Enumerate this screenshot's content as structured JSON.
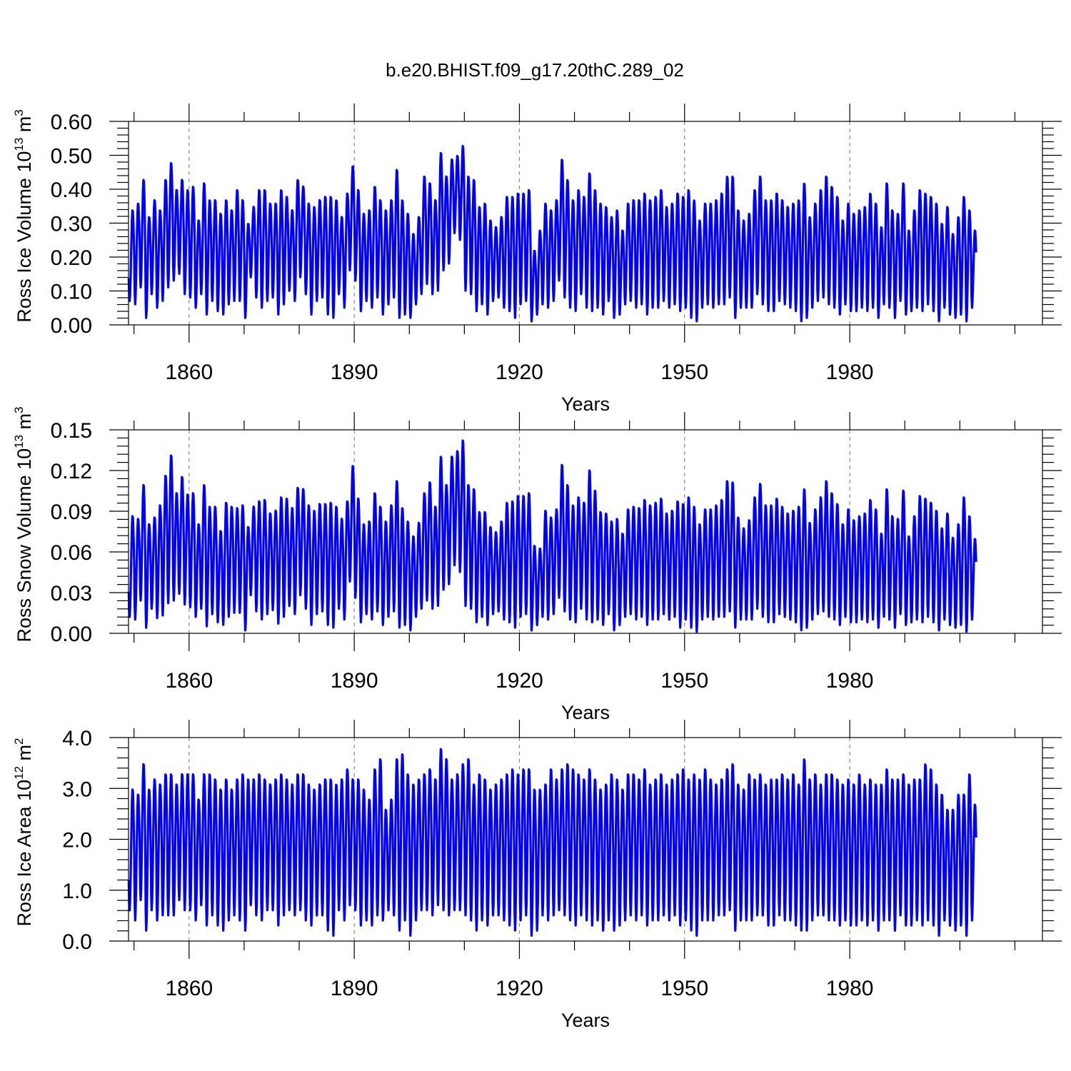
{
  "figure": {
    "title": "b.e20.BHIST.f09_g17.20thC.289_02"
  },
  "style": {
    "line_color": "#0000ff",
    "grid_color": "#888888"
  },
  "chart_data": [
    {
      "type": "line",
      "title": "",
      "xlabel": "Years",
      "ylabel_main": "Ross Ice Volume 10",
      "ylabel_sup": "13",
      "ylabel_unit": " m",
      "ylabel_unit_sup": "3",
      "xlim": [
        1849,
        2015
      ],
      "ylim": [
        0.0,
        0.6
      ],
      "x_ticks": [
        1860,
        1890,
        1920,
        1950,
        1980
      ],
      "x_tick_labels": [
        "1860",
        "1890",
        "1920",
        "1950",
        "1980"
      ],
      "y_ticks": [
        0.0,
        0.1,
        0.2,
        0.3,
        0.4,
        0.5,
        0.6
      ],
      "y_tick_labels": [
        "0.00",
        "0.10",
        "0.20",
        "0.30",
        "0.40",
        "0.50",
        "0.60"
      ],
      "grid": "vertical dashed at major x ticks",
      "series": [
        {
          "color": "#0000ff",
          "cycle": "annual",
          "annual_max": [
            0.34,
            0.36,
            0.43,
            0.32,
            0.37,
            0.34,
            0.43,
            0.48,
            0.4,
            0.43,
            0.4,
            0.41,
            0.31,
            0.42,
            0.37,
            0.37,
            0.33,
            0.37,
            0.34,
            0.4,
            0.37,
            0.3,
            0.35,
            0.4,
            0.4,
            0.36,
            0.36,
            0.4,
            0.38,
            0.34,
            0.43,
            0.41,
            0.36,
            0.35,
            0.37,
            0.38,
            0.38,
            0.37,
            0.32,
            0.39,
            0.47,
            0.4,
            0.33,
            0.34,
            0.41,
            0.37,
            0.34,
            0.37,
            0.46,
            0.37,
            0.33,
            0.27,
            0.32,
            0.44,
            0.42,
            0.37,
            0.51,
            0.44,
            0.49,
            0.5,
            0.53,
            0.44,
            0.43,
            0.35,
            0.36,
            0.31,
            0.29,
            0.32,
            0.38,
            0.38,
            0.39,
            0.39,
            0.4,
            0.22,
            0.28,
            0.36,
            0.34,
            0.37,
            0.49,
            0.43,
            0.37,
            0.4,
            0.38,
            0.45,
            0.4,
            0.36,
            0.35,
            0.32,
            0.34,
            0.28,
            0.36,
            0.37,
            0.37,
            0.39,
            0.37,
            0.38,
            0.4,
            0.35,
            0.36,
            0.39,
            0.38,
            0.4,
            0.37,
            0.31,
            0.36,
            0.36,
            0.37,
            0.39,
            0.44,
            0.44,
            0.34,
            0.31,
            0.33,
            0.4,
            0.44,
            0.37,
            0.37,
            0.39,
            0.37,
            0.35,
            0.36,
            0.37,
            0.42,
            0.32,
            0.36,
            0.4,
            0.44,
            0.41,
            0.38,
            0.31,
            0.36,
            0.33,
            0.34,
            0.35,
            0.39,
            0.36,
            0.29,
            0.42,
            0.34,
            0.33,
            0.42,
            0.28,
            0.34,
            0.4,
            0.39,
            0.38,
            0.36,
            0.3,
            0.35,
            0.27,
            0.32,
            0.38,
            0.34,
            0.28
          ],
          "annual_min": [
            0.07,
            0.06,
            0.11,
            0.02,
            0.09,
            0.05,
            0.07,
            0.11,
            0.13,
            0.15,
            0.09,
            0.08,
            0.05,
            0.09,
            0.03,
            0.07,
            0.04,
            0.03,
            0.06,
            0.07,
            0.07,
            0.02,
            0.14,
            0.08,
            0.05,
            0.07,
            0.08,
            0.03,
            0.06,
            0.1,
            0.07,
            0.14,
            0.09,
            0.03,
            0.07,
            0.08,
            0.03,
            0.02,
            0.09,
            0.05,
            0.16,
            0.13,
            0.04,
            0.07,
            0.05,
            0.08,
            0.03,
            0.06,
            0.08,
            0.02,
            0.03,
            0.02,
            0.06,
            0.09,
            0.12,
            0.09,
            0.1,
            0.16,
            0.18,
            0.27,
            0.25,
            0.1,
            0.09,
            0.04,
            0.06,
            0.03,
            0.07,
            0.08,
            0.05,
            0.04,
            0.02,
            0.06,
            0.07,
            0.01,
            0.03,
            0.06,
            0.05,
            0.07,
            0.13,
            0.08,
            0.05,
            0.04,
            0.09,
            0.05,
            0.04,
            0.05,
            0.03,
            0.07,
            0.02,
            0.03,
            0.06,
            0.07,
            0.05,
            0.06,
            0.03,
            0.05,
            0.05,
            0.07,
            0.05,
            0.06,
            0.04,
            0.05,
            0.02,
            0.01,
            0.05,
            0.06,
            0.05,
            0.06,
            0.06,
            0.08,
            0.02,
            0.05,
            0.05,
            0.05,
            0.09,
            0.06,
            0.04,
            0.04,
            0.07,
            0.06,
            0.05,
            0.04,
            0.01,
            0.02,
            0.05,
            0.07,
            0.08,
            0.06,
            0.05,
            0.03,
            0.06,
            0.04,
            0.04,
            0.05,
            0.04,
            0.05,
            0.02,
            0.06,
            0.05,
            0.02,
            0.07,
            0.03,
            0.04,
            0.05,
            0.04,
            0.06,
            0.04,
            0.01,
            0.05,
            0.03,
            0.02,
            0.03,
            0.01,
            0.05
          ]
        }
      ]
    },
    {
      "type": "line",
      "title": "",
      "xlabel": "Years",
      "ylabel_main": "Ross Snow Volume 10",
      "ylabel_sup": "13",
      "ylabel_unit": " m",
      "ylabel_unit_sup": "3",
      "xlim": [
        1849,
        2015
      ],
      "ylim": [
        0.0,
        0.15
      ],
      "x_ticks": [
        1860,
        1890,
        1920,
        1950,
        1980
      ],
      "x_tick_labels": [
        "1860",
        "1890",
        "1920",
        "1950",
        "1980"
      ],
      "y_ticks": [
        0.0,
        0.03,
        0.06,
        0.09,
        0.12,
        0.15
      ],
      "y_tick_labels": [
        "0.00",
        "0.03",
        "0.06",
        "0.09",
        "0.12",
        "0.15"
      ],
      "grid": "vertical dashed at major x ticks",
      "series": [
        {
          "color": "#0000ff",
          "cycle": "annual",
          "annual_max": [
            0.087,
            0.085,
            0.11,
            0.081,
            0.086,
            0.095,
            0.117,
            0.132,
            0.104,
            0.116,
            0.103,
            0.104,
            0.081,
            0.11,
            0.094,
            0.094,
            0.076,
            0.097,
            0.094,
            0.093,
            0.095,
            0.079,
            0.094,
            0.098,
            0.099,
            0.089,
            0.091,
            0.101,
            0.1,
            0.093,
            0.108,
            0.107,
            0.095,
            0.091,
            0.096,
            0.096,
            0.097,
            0.094,
            0.085,
            0.098,
            0.124,
            0.1,
            0.081,
            0.083,
            0.104,
            0.094,
            0.083,
            0.095,
            0.113,
            0.093,
            0.083,
            0.072,
            0.082,
            0.104,
            0.112,
            0.094,
            0.131,
            0.11,
            0.131,
            0.135,
            0.143,
            0.11,
            0.107,
            0.09,
            0.09,
            0.079,
            0.075,
            0.083,
            0.097,
            0.098,
            0.102,
            0.102,
            0.104,
            0.065,
            0.063,
            0.091,
            0.086,
            0.092,
            0.125,
            0.11,
            0.095,
            0.101,
            0.097,
            0.121,
            0.106,
            0.09,
            0.089,
            0.083,
            0.085,
            0.074,
            0.092,
            0.094,
            0.093,
            0.099,
            0.095,
            0.097,
            0.1,
            0.089,
            0.091,
            0.098,
            0.096,
            0.101,
            0.094,
            0.081,
            0.092,
            0.092,
            0.095,
            0.099,
            0.113,
            0.112,
            0.086,
            0.078,
            0.084,
            0.101,
            0.111,
            0.095,
            0.095,
            0.1,
            0.094,
            0.089,
            0.091,
            0.094,
            0.107,
            0.082,
            0.092,
            0.101,
            0.113,
            0.104,
            0.096,
            0.081,
            0.092,
            0.084,
            0.087,
            0.089,
            0.099,
            0.092,
            0.074,
            0.107,
            0.087,
            0.085,
            0.106,
            0.072,
            0.087,
            0.102,
            0.1,
            0.097,
            0.091,
            0.078,
            0.089,
            0.071,
            0.081,
            0.101,
            0.087,
            0.07
          ],
          "annual_min": [
            0.012,
            0.01,
            0.024,
            0.004,
            0.018,
            0.011,
            0.013,
            0.022,
            0.024,
            0.029,
            0.021,
            0.019,
            0.012,
            0.018,
            0.005,
            0.014,
            0.008,
            0.006,
            0.012,
            0.015,
            0.015,
            0.002,
            0.028,
            0.016,
            0.01,
            0.014,
            0.017,
            0.007,
            0.012,
            0.02,
            0.014,
            0.028,
            0.018,
            0.006,
            0.014,
            0.016,
            0.006,
            0.004,
            0.018,
            0.01,
            0.038,
            0.026,
            0.008,
            0.014,
            0.01,
            0.016,
            0.006,
            0.012,
            0.016,
            0.004,
            0.006,
            0.002,
            0.012,
            0.018,
            0.024,
            0.018,
            0.02,
            0.032,
            0.036,
            0.05,
            0.045,
            0.02,
            0.018,
            0.008,
            0.012,
            0.006,
            0.014,
            0.016,
            0.01,
            0.008,
            0.004,
            0.012,
            0.014,
            0.002,
            0.006,
            0.012,
            0.01,
            0.014,
            0.026,
            0.016,
            0.01,
            0.008,
            0.018,
            0.01,
            0.008,
            0.01,
            0.006,
            0.014,
            0.002,
            0.006,
            0.012,
            0.014,
            0.01,
            0.012,
            0.006,
            0.01,
            0.01,
            0.014,
            0.01,
            0.012,
            0.004,
            0.01,
            0.004,
            0.001,
            0.01,
            0.012,
            0.01,
            0.012,
            0.012,
            0.016,
            0.004,
            0.01,
            0.01,
            0.01,
            0.018,
            0.012,
            0.008,
            0.008,
            0.014,
            0.012,
            0.01,
            0.008,
            0.002,
            0.004,
            0.01,
            0.014,
            0.016,
            0.012,
            0.01,
            0.006,
            0.012,
            0.008,
            0.008,
            0.01,
            0.008,
            0.01,
            0.004,
            0.012,
            0.01,
            0.004,
            0.014,
            0.006,
            0.008,
            0.01,
            0.008,
            0.012,
            0.008,
            0.002,
            0.01,
            0.006,
            0.004,
            0.006,
            0.001,
            0.01
          ]
        }
      ]
    },
    {
      "type": "line",
      "title": "",
      "xlabel": "Years",
      "ylabel_main": "Ross Ice Area 10",
      "ylabel_sup": "12",
      "ylabel_unit": " m",
      "ylabel_unit_sup": "2",
      "xlim": [
        1849,
        2015
      ],
      "ylim": [
        0.0,
        4.0
      ],
      "x_ticks": [
        1860,
        1890,
        1920,
        1950,
        1980
      ],
      "x_tick_labels": [
        "1860",
        "1890",
        "1920",
        "1950",
        "1980"
      ],
      "y_ticks": [
        0.0,
        1.0,
        2.0,
        3.0,
        4.0
      ],
      "y_tick_labels": [
        "0.0",
        "1.0",
        "2.0",
        "3.0",
        "4.0"
      ],
      "grid": "vertical dashed at major x ticks",
      "series": [
        {
          "color": "#0000ff",
          "cycle": "annual",
          "annual_max": [
            3.0,
            2.9,
            3.5,
            3.0,
            3.2,
            3.1,
            3.3,
            3.3,
            3.1,
            3.3,
            3.3,
            3.3,
            2.8,
            3.3,
            3.3,
            3.2,
            3.0,
            3.2,
            3.0,
            3.2,
            3.3,
            3.2,
            3.2,
            3.3,
            3.2,
            3.1,
            3.2,
            3.3,
            3.2,
            3.1,
            3.3,
            3.3,
            3.1,
            3.0,
            3.1,
            3.2,
            3.2,
            3.1,
            3.2,
            3.4,
            3.2,
            3.2,
            3.0,
            2.8,
            3.4,
            3.6,
            2.6,
            2.8,
            3.6,
            3.7,
            3.3,
            3.1,
            3.2,
            3.3,
            3.4,
            3.2,
            3.8,
            3.6,
            3.2,
            3.3,
            3.5,
            3.6,
            3.1,
            3.3,
            3.2,
            3.0,
            3.1,
            3.2,
            3.3,
            3.4,
            3.3,
            3.4,
            3.4,
            3.0,
            3.0,
            3.1,
            3.4,
            3.2,
            3.4,
            3.5,
            3.4,
            3.3,
            3.2,
            3.4,
            3.2,
            3.0,
            3.1,
            3.3,
            3.2,
            3.0,
            3.3,
            3.3,
            3.2,
            3.4,
            3.1,
            3.2,
            3.3,
            3.1,
            3.2,
            3.3,
            3.4,
            3.2,
            3.3,
            3.2,
            3.4,
            3.2,
            3.1,
            3.2,
            3.4,
            3.5,
            3.1,
            3.0,
            3.3,
            3.2,
            3.3,
            3.1,
            3.2,
            3.2,
            3.3,
            3.2,
            3.3,
            3.1,
            3.6,
            3.2,
            3.3,
            3.1,
            3.3,
            3.3,
            3.2,
            3.1,
            3.2,
            3.1,
            3.3,
            3.1,
            3.2,
            3.1,
            3.1,
            3.4,
            3.2,
            3.2,
            3.3,
            3.1,
            3.2,
            3.2,
            3.5,
            3.4,
            3.1,
            2.9,
            2.6,
            2.6,
            2.9,
            2.9,
            3.3,
            2.7
          ],
          "annual_min": [
            0.6,
            0.4,
            0.8,
            0.2,
            0.6,
            0.4,
            0.5,
            0.5,
            0.5,
            0.8,
            0.6,
            0.6,
            0.4,
            0.7,
            0.3,
            0.5,
            0.3,
            0.2,
            0.4,
            0.5,
            0.4,
            0.2,
            0.7,
            0.5,
            0.4,
            0.6,
            0.6,
            0.3,
            0.5,
            0.6,
            0.5,
            0.6,
            0.4,
            0.3,
            0.5,
            0.5,
            0.2,
            0.1,
            0.6,
            0.4,
            0.7,
            0.6,
            0.3,
            0.4,
            0.3,
            0.5,
            0.4,
            0.6,
            0.5,
            0.2,
            0.4,
            0.1,
            0.4,
            0.6,
            0.6,
            0.5,
            0.7,
            0.6,
            0.5,
            0.6,
            0.6,
            0.5,
            0.4,
            0.2,
            0.4,
            0.3,
            0.5,
            0.5,
            0.4,
            0.3,
            0.2,
            0.4,
            0.5,
            0.1,
            0.2,
            0.5,
            0.4,
            0.5,
            0.6,
            0.5,
            0.4,
            0.3,
            0.5,
            0.4,
            0.3,
            0.4,
            0.2,
            0.4,
            0.2,
            0.3,
            0.4,
            0.5,
            0.4,
            0.5,
            0.3,
            0.4,
            0.4,
            0.5,
            0.4,
            0.5,
            0.3,
            0.4,
            0.2,
            0.1,
            0.4,
            0.4,
            0.4,
            0.5,
            0.5,
            0.6,
            0.2,
            0.4,
            0.4,
            0.4,
            0.5,
            0.5,
            0.3,
            0.3,
            0.5,
            0.4,
            0.4,
            0.3,
            0.2,
            0.2,
            0.4,
            0.5,
            0.5,
            0.4,
            0.4,
            0.3,
            0.4,
            0.3,
            0.3,
            0.4,
            0.3,
            0.4,
            0.2,
            0.4,
            0.4,
            0.2,
            0.5,
            0.3,
            0.3,
            0.4,
            0.3,
            0.4,
            0.3,
            0.1,
            0.4,
            0.3,
            0.2,
            0.3,
            0.1,
            0.4
          ]
        }
      ]
    }
  ]
}
